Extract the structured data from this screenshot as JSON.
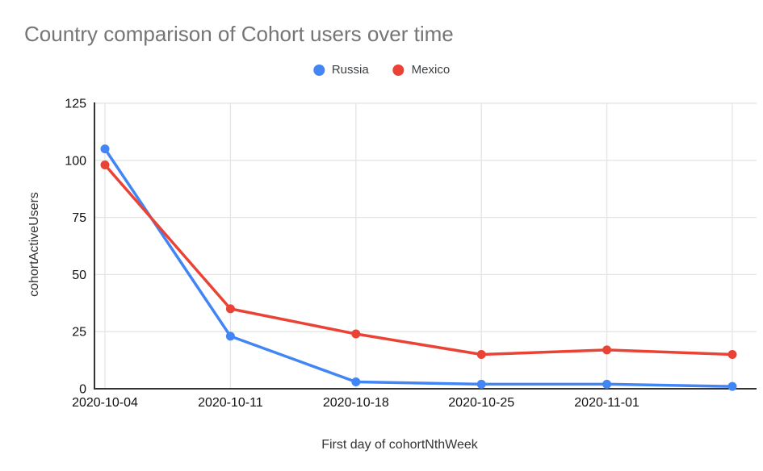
{
  "chart_data": {
    "type": "line",
    "title": "Country comparison of Cohort users over time",
    "xlabel": "First day of cohortNthWeek",
    "ylabel": "cohortActiveUsers",
    "categories": [
      "2020-10-04",
      "2020-10-11",
      "2020-10-18",
      "2020-10-25",
      "2020-11-01",
      ""
    ],
    "series": [
      {
        "name": "Russia",
        "color": "#4285F4",
        "values": [
          105,
          23,
          3,
          2,
          2,
          1
        ]
      },
      {
        "name": "Mexico",
        "color": "#EA4335",
        "values": [
          98,
          35,
          24,
          15,
          17,
          15
        ]
      }
    ],
    "ylim": [
      0,
      125
    ],
    "yticks": [
      0,
      25,
      50,
      75,
      100,
      125
    ],
    "grid": true,
    "legend_position": "top",
    "marker": "circle",
    "colors": {
      "background": "#ffffff",
      "title_text": "#757575",
      "tick_text": "#111111",
      "axis_title_text": "#333333",
      "axis_line": "#333333",
      "gridline": "#e6e6e6",
      "legend_text": "#3c4043"
    }
  }
}
